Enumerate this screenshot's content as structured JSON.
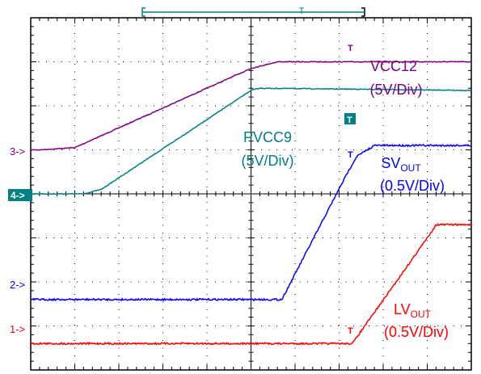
{
  "colors": {
    "ch1": "#ff0000",
    "ch2": "#0000ff",
    "ch3": "#800080",
    "ch4": "#008080",
    "grid": "#000000",
    "trigger": "#008080"
  },
  "channels": [
    {
      "id": "1",
      "marker": "1->"
    },
    {
      "id": "2",
      "marker": "2->"
    },
    {
      "id": "3",
      "marker": "3->"
    },
    {
      "id": "4",
      "marker": "4->"
    }
  ],
  "trigger_marker": "T",
  "trigger_bar_label": "T",
  "labels": {
    "vcc12": {
      "name": "VCC12",
      "scale": "(5V/Div)"
    },
    "pvcc9": {
      "name": "PVCC9",
      "scale": "(5V/Div)"
    },
    "svout": {
      "name": "SV",
      "sub": "OUT",
      "scale": "(0.5V/Div)"
    },
    "lvout": {
      "name": "LV",
      "sub": "OUT",
      "scale": "(0.5V/Div)"
    }
  },
  "chart_data": {
    "type": "line",
    "title": "",
    "xlabel": "",
    "ylabel": "",
    "grid": true,
    "divisions": {
      "x": 10,
      "y": 8
    },
    "xlim": [
      0,
      10
    ],
    "ylim": [
      0,
      8
    ],
    "series": [
      {
        "channel": "3",
        "color": "#800080",
        "x": [
          0,
          0.2,
          1.0,
          5.0,
          5.6,
          10
        ],
        "y": [
          5.0,
          5.0,
          5.05,
          6.85,
          7.0,
          7.0
        ]
      },
      {
        "channel": "4",
        "color": "#008080",
        "x": [
          0,
          1.2,
          1.6,
          5.0,
          5.2,
          10
        ],
        "y": [
          4.0,
          4.0,
          4.1,
          6.35,
          6.4,
          6.35
        ]
      },
      {
        "channel": "2",
        "color": "#0000ff",
        "x": [
          0,
          5.7,
          7.2,
          7.4,
          7.8,
          10
        ],
        "y": [
          1.6,
          1.6,
          4.5,
          4.85,
          5.1,
          5.1
        ]
      },
      {
        "channel": "1",
        "color": "#ff0000",
        "x": [
          0,
          7.3,
          9.0,
          9.2,
          10
        ],
        "y": [
          0.6,
          0.6,
          3.0,
          3.3,
          3.3
        ]
      }
    ]
  }
}
